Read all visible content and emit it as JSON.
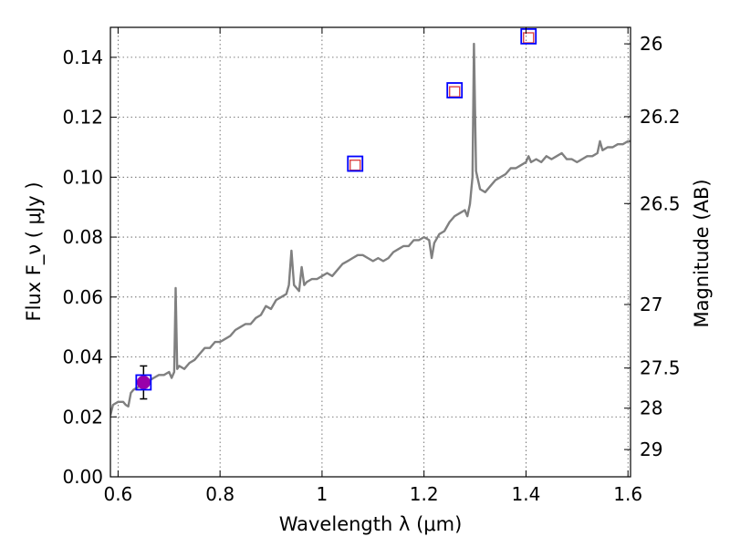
{
  "chart_data": {
    "type": "line",
    "xlabel": "Wavelength  λ (μm)",
    "ylabel": "Flux  F_ν  ( μJy )",
    "y2label": "Magnitude (AB)",
    "xlim": [
      0.585,
      1.605
    ],
    "ylim": [
      0.0,
      0.15
    ],
    "grid": true,
    "x_ticks": [
      {
        "value": 0.6,
        "label": "0.6"
      },
      {
        "value": 0.8,
        "label": "0.8"
      },
      {
        "value": 1.0,
        "label": "1"
      },
      {
        "value": 1.2,
        "label": "1.2"
      },
      {
        "value": 1.4,
        "label": "1.4"
      },
      {
        "value": 1.6,
        "label": "1.6"
      }
    ],
    "y_ticks": [
      {
        "value": 0.0,
        "label": "0.00"
      },
      {
        "value": 0.02,
        "label": "0.02"
      },
      {
        "value": 0.04,
        "label": "0.04"
      },
      {
        "value": 0.06,
        "label": "0.06"
      },
      {
        "value": 0.08,
        "label": "0.08"
      },
      {
        "value": 0.1,
        "label": "0.10"
      },
      {
        "value": 0.12,
        "label": "0.12"
      },
      {
        "value": 0.14,
        "label": "0.14"
      }
    ],
    "y2_ticks": [
      {
        "flux": 0.1445,
        "label": "26"
      },
      {
        "flux": 0.1202,
        "label": "26.2"
      },
      {
        "flux": 0.0912,
        "label": "26.5"
      },
      {
        "flux": 0.0575,
        "label": "27"
      },
      {
        "flux": 0.0363,
        "label": "27.5"
      },
      {
        "flux": 0.0229,
        "label": "28"
      },
      {
        "flux": 0.0091,
        "label": "29"
      }
    ],
    "spectrum": {
      "color": "#808080",
      "points": [
        [
          0.585,
          0.0205
        ],
        [
          0.59,
          0.024
        ],
        [
          0.6,
          0.025
        ],
        [
          0.61,
          0.025
        ],
        [
          0.615,
          0.024
        ],
        [
          0.62,
          0.0235
        ],
        [
          0.625,
          0.028
        ],
        [
          0.63,
          0.029
        ],
        [
          0.64,
          0.03
        ],
        [
          0.65,
          0.031
        ],
        [
          0.66,
          0.032
        ],
        [
          0.67,
          0.033
        ],
        [
          0.68,
          0.034
        ],
        [
          0.69,
          0.034
        ],
        [
          0.7,
          0.035
        ],
        [
          0.705,
          0.033
        ],
        [
          0.71,
          0.035
        ],
        [
          0.713,
          0.063
        ],
        [
          0.716,
          0.036
        ],
        [
          0.72,
          0.037
        ],
        [
          0.73,
          0.036
        ],
        [
          0.74,
          0.038
        ],
        [
          0.75,
          0.039
        ],
        [
          0.76,
          0.041
        ],
        [
          0.77,
          0.043
        ],
        [
          0.78,
          0.043
        ],
        [
          0.79,
          0.045
        ],
        [
          0.8,
          0.045
        ],
        [
          0.81,
          0.046
        ],
        [
          0.82,
          0.047
        ],
        [
          0.83,
          0.049
        ],
        [
          0.84,
          0.05
        ],
        [
          0.85,
          0.051
        ],
        [
          0.86,
          0.051
        ],
        [
          0.87,
          0.053
        ],
        [
          0.88,
          0.054
        ],
        [
          0.89,
          0.057
        ],
        [
          0.9,
          0.056
        ],
        [
          0.91,
          0.059
        ],
        [
          0.92,
          0.06
        ],
        [
          0.93,
          0.061
        ],
        [
          0.935,
          0.064
        ],
        [
          0.94,
          0.0755
        ],
        [
          0.945,
          0.064
        ],
        [
          0.95,
          0.063
        ],
        [
          0.955,
          0.062
        ],
        [
          0.96,
          0.07
        ],
        [
          0.965,
          0.064
        ],
        [
          0.97,
          0.065
        ],
        [
          0.98,
          0.066
        ],
        [
          0.99,
          0.066
        ],
        [
          1.0,
          0.067
        ],
        [
          1.01,
          0.068
        ],
        [
          1.02,
          0.067
        ],
        [
          1.03,
          0.069
        ],
        [
          1.04,
          0.071
        ],
        [
          1.05,
          0.072
        ],
        [
          1.06,
          0.073
        ],
        [
          1.07,
          0.074
        ],
        [
          1.08,
          0.074
        ],
        [
          1.09,
          0.073
        ],
        [
          1.1,
          0.072
        ],
        [
          1.11,
          0.073
        ],
        [
          1.12,
          0.072
        ],
        [
          1.13,
          0.073
        ],
        [
          1.14,
          0.075
        ],
        [
          1.15,
          0.076
        ],
        [
          1.16,
          0.077
        ],
        [
          1.17,
          0.077
        ],
        [
          1.18,
          0.079
        ],
        [
          1.19,
          0.079
        ],
        [
          1.2,
          0.08
        ],
        [
          1.21,
          0.079
        ],
        [
          1.215,
          0.073
        ],
        [
          1.22,
          0.078
        ],
        [
          1.23,
          0.081
        ],
        [
          1.24,
          0.082
        ],
        [
          1.25,
          0.085
        ],
        [
          1.26,
          0.087
        ],
        [
          1.27,
          0.088
        ],
        [
          1.28,
          0.089
        ],
        [
          1.285,
          0.087
        ],
        [
          1.29,
          0.091
        ],
        [
          1.295,
          0.1
        ],
        [
          1.298,
          0.1445
        ],
        [
          1.302,
          0.102
        ],
        [
          1.31,
          0.096
        ],
        [
          1.32,
          0.095
        ],
        [
          1.33,
          0.097
        ],
        [
          1.34,
          0.099
        ],
        [
          1.35,
          0.1
        ],
        [
          1.36,
          0.101
        ],
        [
          1.37,
          0.103
        ],
        [
          1.38,
          0.103
        ],
        [
          1.39,
          0.104
        ],
        [
          1.4,
          0.105
        ],
        [
          1.405,
          0.107
        ],
        [
          1.41,
          0.105
        ],
        [
          1.42,
          0.106
        ],
        [
          1.43,
          0.105
        ],
        [
          1.44,
          0.107
        ],
        [
          1.45,
          0.106
        ],
        [
          1.46,
          0.107
        ],
        [
          1.47,
          0.108
        ],
        [
          1.48,
          0.106
        ],
        [
          1.49,
          0.106
        ],
        [
          1.5,
          0.105
        ],
        [
          1.51,
          0.106
        ],
        [
          1.52,
          0.107
        ],
        [
          1.53,
          0.107
        ],
        [
          1.54,
          0.108
        ],
        [
          1.545,
          0.112
        ],
        [
          1.55,
          0.109
        ],
        [
          1.56,
          0.11
        ],
        [
          1.57,
          0.11
        ],
        [
          1.58,
          0.111
        ],
        [
          1.59,
          0.111
        ],
        [
          1.6,
          0.112
        ],
        [
          1.605,
          0.112
        ]
      ]
    },
    "observed": {
      "x": 0.65,
      "y": 0.0315,
      "yerr": 0.0055,
      "color": "#9900aa"
    },
    "model_photometry_blue": {
      "color": "#0000ff",
      "points": [
        [
          0.65,
          0.0315
        ],
        [
          1.065,
          0.1045
        ],
        [
          1.26,
          0.129
        ],
        [
          1.405,
          0.147
        ]
      ]
    },
    "model_photometry_red": {
      "color": "#dd4444",
      "points": [
        [
          1.065,
          0.104
        ],
        [
          1.26,
          0.1285
        ],
        [
          1.405,
          0.1465
        ]
      ]
    }
  }
}
